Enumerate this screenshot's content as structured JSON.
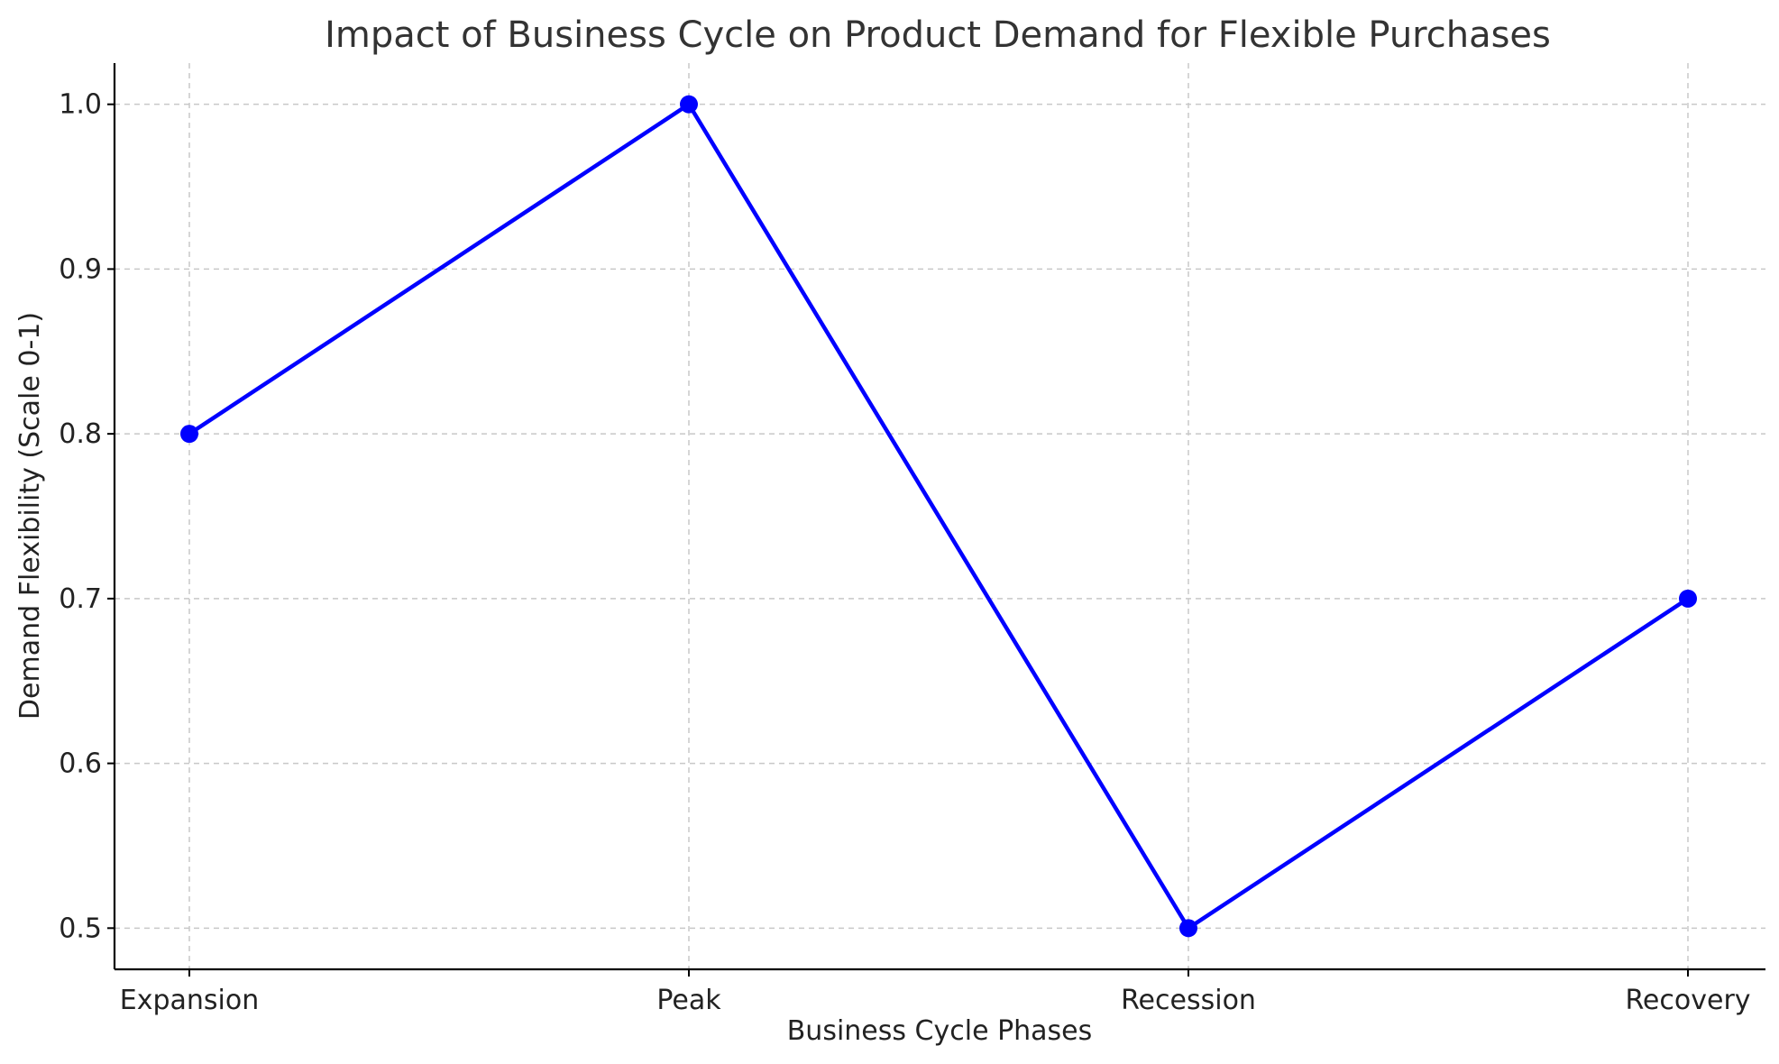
{
  "chart_data": {
    "type": "line",
    "title": "Impact of Business Cycle on Product Demand for Flexible Purchases",
    "xlabel": "Business Cycle Phases",
    "ylabel": "Demand Flexibility (Scale 0-1)",
    "categories": [
      "Expansion",
      "Peak",
      "Recession",
      "Recovery"
    ],
    "series": [
      {
        "values": [
          0.8,
          1.0,
          0.5,
          0.7
        ],
        "color": "#0000ff",
        "marker": "circle"
      }
    ],
    "ylim": [
      0.475,
      1.025
    ],
    "yticks": [
      0.5,
      0.6,
      0.7,
      0.8,
      0.9,
      1.0
    ],
    "ytick_labels": [
      "0.5",
      "0.6",
      "0.7",
      "0.8",
      "0.9",
      "1.0"
    ],
    "grid": true,
    "legend": "none"
  }
}
